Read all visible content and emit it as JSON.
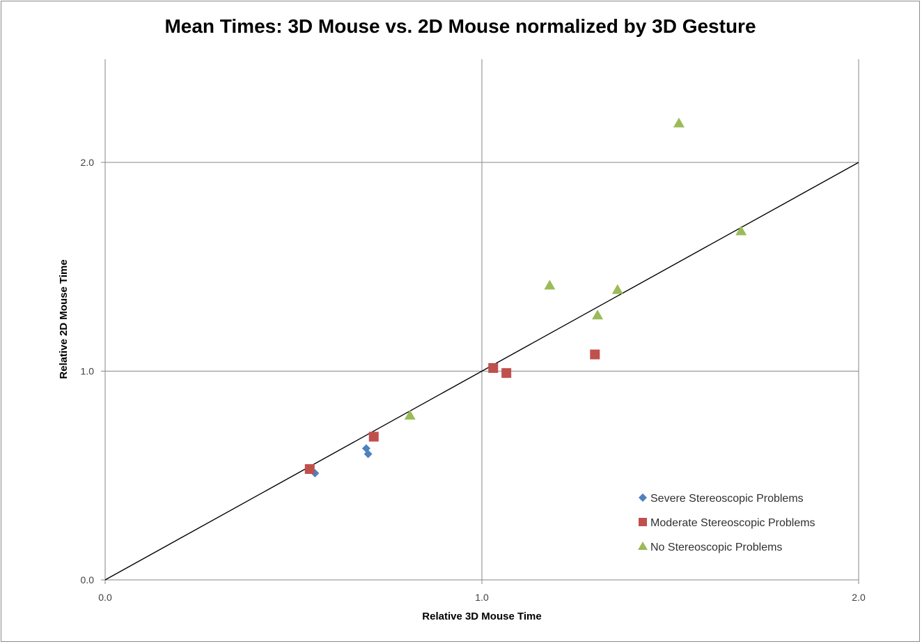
{
  "chart_data": {
    "type": "scatter",
    "title": "Mean Times: 3D Mouse vs. 2D Mouse normalized by 3D Gesture",
    "xlabel": "Relative 3D Mouse Time",
    "ylabel": "Relative 2D Mouse Time",
    "xlim": [
      0,
      2
    ],
    "ylim": [
      0,
      2
    ],
    "x_ticks": [
      0,
      1,
      2
    ],
    "y_ticks": [
      0,
      1,
      2
    ],
    "x_tick_labels": [
      "0.0",
      "1.0",
      "2.0"
    ],
    "y_tick_labels": [
      "0.0",
      "1.0",
      "2.0"
    ],
    "grid": true,
    "legend_position": "bottom-right",
    "reference_line": {
      "from": [
        0,
        0
      ],
      "to": [
        2,
        2
      ],
      "color": "#000000"
    },
    "series": [
      {
        "name": "Severe Stereoscopic Problems",
        "marker": "diamond",
        "color": "#4F81BD",
        "points": [
          [
            0.557,
            0.511
          ],
          [
            0.693,
            0.63
          ],
          [
            0.698,
            0.603
          ]
        ]
      },
      {
        "name": "Moderate Stereoscopic Problems",
        "marker": "square",
        "color": "#C0504D",
        "points": [
          [
            0.543,
            0.531
          ],
          [
            0.713,
            0.686
          ],
          [
            1.03,
            1.015
          ],
          [
            1.065,
            0.991
          ],
          [
            1.3,
            1.08
          ]
        ]
      },
      {
        "name": "No Stereoscopic Problems",
        "marker": "triangle",
        "color": "#9BBB59",
        "points": [
          [
            0.809,
            0.788
          ],
          [
            1.18,
            1.411
          ],
          [
            1.307,
            1.268
          ],
          [
            1.36,
            1.39
          ],
          [
            1.523,
            2.188
          ],
          [
            1.688,
            1.671
          ]
        ]
      }
    ]
  }
}
